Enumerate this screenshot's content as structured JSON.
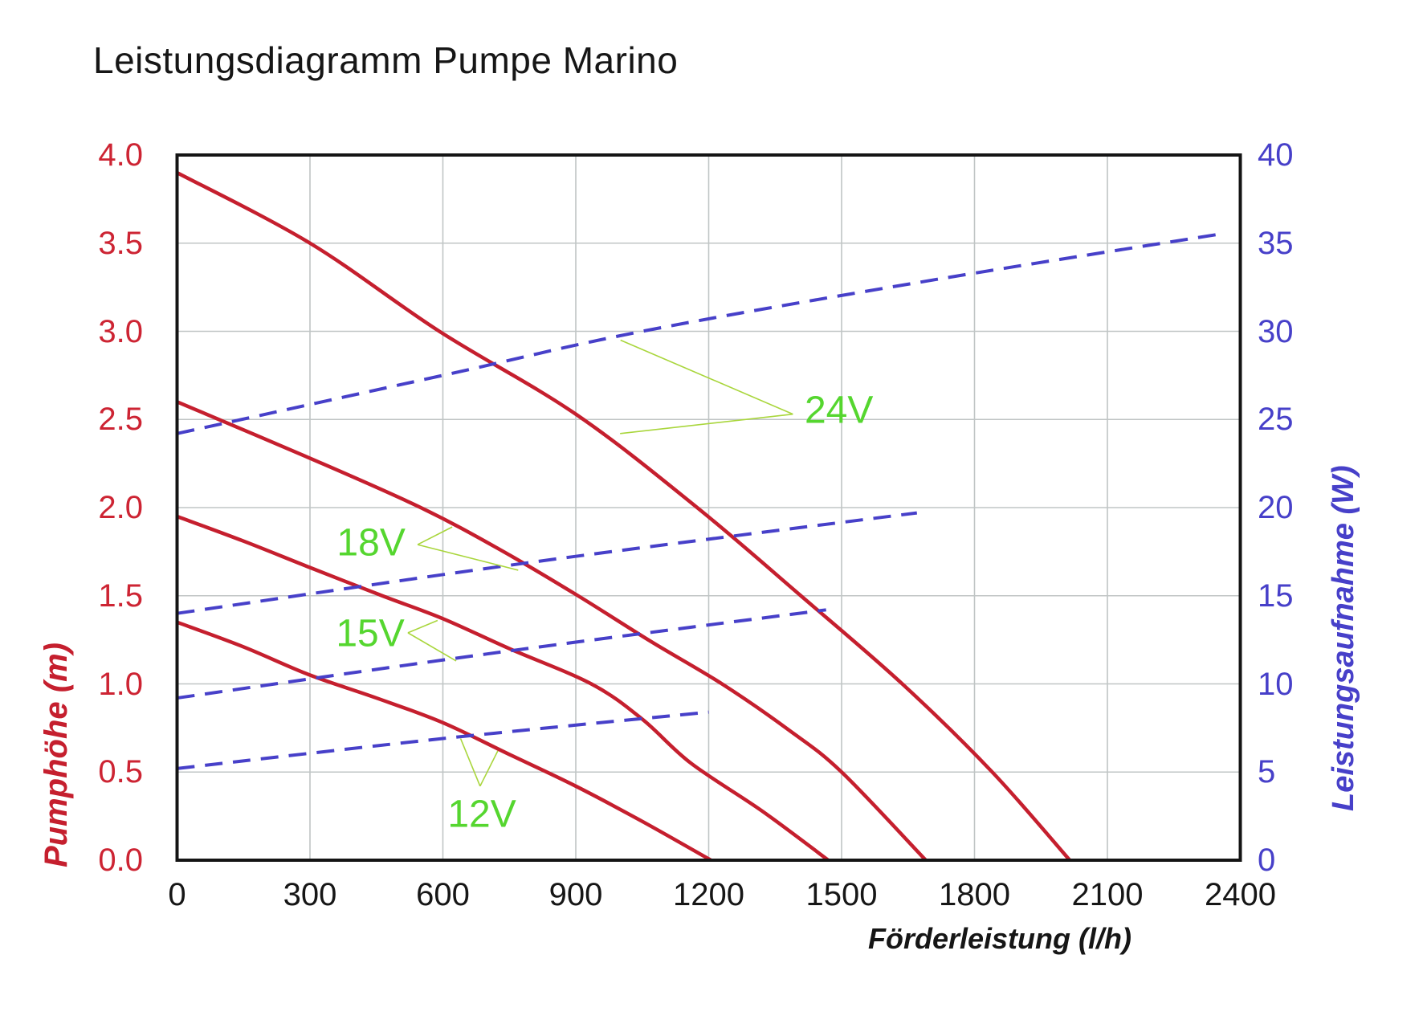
{
  "title": "Leistungsdiagramm Pumpe Marino",
  "axes": {
    "bottom": {
      "title": "Förderleistung (l/h)",
      "ticks": {
        "labels": [
          "0",
          "300",
          "600",
          "900",
          "1200",
          "1500",
          "1800",
          "2100",
          "2400"
        ],
        "values": [
          0,
          300,
          600,
          900,
          1200,
          1500,
          1800,
          2100,
          2400
        ]
      }
    },
    "left": {
      "title": "Pumphöhe (m)",
      "ticks": {
        "labels": [
          "0.0",
          "0.5",
          "1.0",
          "1.5",
          "2.0",
          "2.5",
          "3.0",
          "3.5",
          "4.0"
        ],
        "values": [
          0,
          0.5,
          1,
          1.5,
          2,
          2.5,
          3,
          3.5,
          4
        ]
      }
    },
    "right": {
      "title": "Leistungsaufnahme (W)",
      "ticks": {
        "labels": [
          "0",
          "5",
          "10",
          "15",
          "20",
          "25",
          "30",
          "35",
          "40"
        ],
        "values": [
          0,
          5,
          10,
          15,
          20,
          25,
          30,
          35,
          40
        ]
      }
    }
  },
  "colors": {
    "head_curve": "#c51f2e",
    "power_curve": "#4740c9",
    "left_tick_text": "#cd2433",
    "right_tick_text": "#4740c9",
    "voltage_text": "#55d62f",
    "leader_line": "#a9d63c",
    "grid": "#c0c5c5",
    "frame": "#141414"
  },
  "chart_data": {
    "type": "line",
    "title": "Leistungsdiagramm Pumpe Marino",
    "xlabel": "Förderleistung (l/h)",
    "xlim": [
      0,
      2400
    ],
    "xticks": [
      0,
      300,
      600,
      900,
      1200,
      1500,
      1800,
      2100,
      2400
    ],
    "grid": true,
    "y_left": {
      "label": "Pumphöhe (m)",
      "lim": [
        0,
        4
      ],
      "tick_step": 0.5
    },
    "y_right": {
      "label": "Leistungsaufnahme (W)",
      "lim": [
        0,
        40
      ],
      "tick_step": 5
    },
    "series": [
      {
        "name": "12V Pumphöhe",
        "axis": "left",
        "style": "solid",
        "points": [
          [
            0,
            1.35
          ],
          [
            150,
            1.21
          ],
          [
            300,
            1.05
          ],
          [
            450,
            0.92
          ],
          [
            600,
            0.78
          ],
          [
            750,
            0.6
          ],
          [
            900,
            0.42
          ],
          [
            1050,
            0.22
          ],
          [
            1205,
            0
          ]
        ]
      },
      {
        "name": "15V Pumphöhe",
        "axis": "left",
        "style": "solid",
        "points": [
          [
            0,
            1.95
          ],
          [
            150,
            1.81
          ],
          [
            300,
            1.66
          ],
          [
            463,
            1.5
          ],
          [
            600,
            1.37
          ],
          [
            750,
            1.2
          ],
          [
            935,
            1.0
          ],
          [
            1050,
            0.8
          ],
          [
            1160,
            0.55
          ],
          [
            1320,
            0.28
          ],
          [
            1470,
            0
          ]
        ]
      },
      {
        "name": "18V Pumphöhe",
        "axis": "left",
        "style": "solid",
        "points": [
          [
            0,
            2.6
          ],
          [
            300,
            2.28
          ],
          [
            550,
            2.0
          ],
          [
            730,
            1.76
          ],
          [
            905,
            1.5
          ],
          [
            1070,
            1.24
          ],
          [
            1230,
            1.0
          ],
          [
            1380,
            0.74
          ],
          [
            1500,
            0.5
          ],
          [
            1690,
            0
          ]
        ]
      },
      {
        "name": "24V Pumphöhe",
        "axis": "left",
        "style": "solid",
        "points": [
          [
            0,
            3.9
          ],
          [
            300,
            3.5
          ],
          [
            592,
            3.0
          ],
          [
            900,
            2.53
          ],
          [
            1174,
            2.0
          ],
          [
            1408,
            1.5
          ],
          [
            1637,
            1.0
          ],
          [
            1840,
            0.5
          ],
          [
            2015,
            0
          ]
        ]
      },
      {
        "name": "12V Leistungsaufnahme",
        "axis": "right",
        "style": "dashed",
        "points": [
          [
            0,
            5.2
          ],
          [
            600,
            6.9
          ],
          [
            1200,
            8.4
          ]
        ]
      },
      {
        "name": "15V Leistungsaufnahme",
        "axis": "right",
        "style": "dashed",
        "points": [
          [
            0,
            9.2
          ],
          [
            700,
            11.7
          ],
          [
            1465,
            14.2
          ]
        ]
      },
      {
        "name": "18V Leistungsaufnahme",
        "axis": "right",
        "style": "dashed",
        "points": [
          [
            0,
            14.0
          ],
          [
            800,
            16.9
          ],
          [
            1670,
            19.7
          ]
        ]
      },
      {
        "name": "24V Leistungsaufnahme",
        "axis": "right",
        "style": "dashed",
        "points": [
          [
            0,
            24.2
          ],
          [
            600,
            27.5
          ],
          [
            1050,
            30.0
          ],
          [
            1680,
            32.8
          ],
          [
            2350,
            35.5
          ]
        ]
      }
    ],
    "annotations": [
      {
        "text": "12V",
        "x": 688,
        "y_m": 0.26,
        "apex": [
          684,
          0.42
        ],
        "leader_to_head": [
          724,
          0.62
        ],
        "leader_to_power": [
          640,
          6.9
        ]
      },
      {
        "text": "15V",
        "x": 436,
        "y_m": 1.285,
        "apex": [
          521,
          1.29
        ],
        "leader_to_head": [
          588,
          1.36
        ],
        "leader_to_power": [
          630,
          11.3
        ]
      },
      {
        "text": "18V",
        "x": 438,
        "y_m": 1.8,
        "apex": [
          543,
          1.79
        ],
        "leader_to_head": [
          621,
          1.89
        ],
        "leader_to_power": [
          770,
          16.45
        ]
      },
      {
        "text": "24V",
        "x": 1494,
        "y_m": 2.55,
        "apex": [
          1390,
          2.53
        ],
        "leader_to_head": [
          1000,
          2.42
        ],
        "leader_to_power": [
          1001,
          29.5
        ]
      }
    ]
  }
}
